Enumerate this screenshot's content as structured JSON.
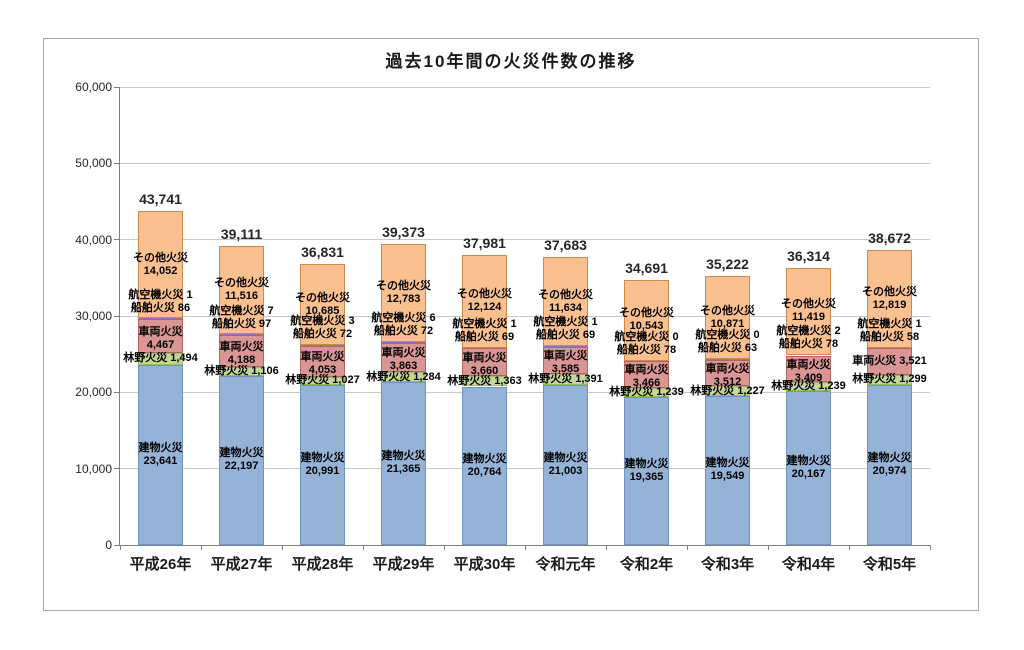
{
  "page": {
    "background_color": "#ffffff",
    "frame_border_color": "#a8a8a8"
  },
  "chart_data": {
    "type": "bar",
    "stacked": true,
    "title": "過去10年間の火災件数の推移",
    "categories": [
      "平成26年",
      "平成27年",
      "平成28年",
      "平成29年",
      "平成30年",
      "令和元年",
      "令和2年",
      "令和3年",
      "令和4年",
      "令和5年"
    ],
    "series": [
      {
        "key": "building",
        "name": "建物火災",
        "color": "#95b3d7",
        "border_color": "#6f94be",
        "values": [
          23641,
          22197,
          20991,
          21365,
          20764,
          21003,
          19365,
          19549,
          20167,
          20974
        ]
      },
      {
        "key": "forest",
        "name": "林野火災",
        "color": "#c3d69b",
        "border_color": "#9cb963",
        "values": [
          1494,
          1106,
          1027,
          1284,
          1363,
          1391,
          1239,
          1227,
          1239,
          1299
        ]
      },
      {
        "key": "vehicle",
        "name": "車両火災",
        "color": "#d99694",
        "border_color": "#b26460",
        "values": [
          4467,
          4188,
          4053,
          3863,
          3660,
          3585,
          3466,
          3512,
          3409,
          3521
        ]
      },
      {
        "key": "ship",
        "name": "船舶火災",
        "color": "#b1a0c7",
        "border_color": "#8d79ab",
        "values": [
          86,
          97,
          72,
          72,
          69,
          69,
          78,
          63,
          78,
          58
        ]
      },
      {
        "key": "aircraft",
        "name": "航空機火災",
        "color": "#92cddc",
        "border_color": "#6ab1c4",
        "values": [
          1,
          7,
          3,
          6,
          1,
          1,
          0,
          0,
          2,
          1
        ]
      },
      {
        "key": "other",
        "name": "その他火災",
        "color": "#fac090",
        "border_color": "#d0884a",
        "values": [
          14052,
          11516,
          10685,
          12783,
          12124,
          11634,
          10543,
          10871,
          11419,
          12819
        ]
      }
    ],
    "totals": [
      43741,
      39111,
      36831,
      39373,
      37981,
      37683,
      34691,
      35222,
      36314,
      38672
    ],
    "ylim": [
      0,
      60000
    ],
    "ytick_interval": 10000,
    "ytick_labels": [
      "0",
      "10,000",
      "20,000",
      "30,000",
      "40,000",
      "50,000",
      "60,000"
    ],
    "grid": true,
    "legend": "none",
    "labels_on_segments": true,
    "single_line_vehicle_label_indexes": [
      9
    ]
  }
}
